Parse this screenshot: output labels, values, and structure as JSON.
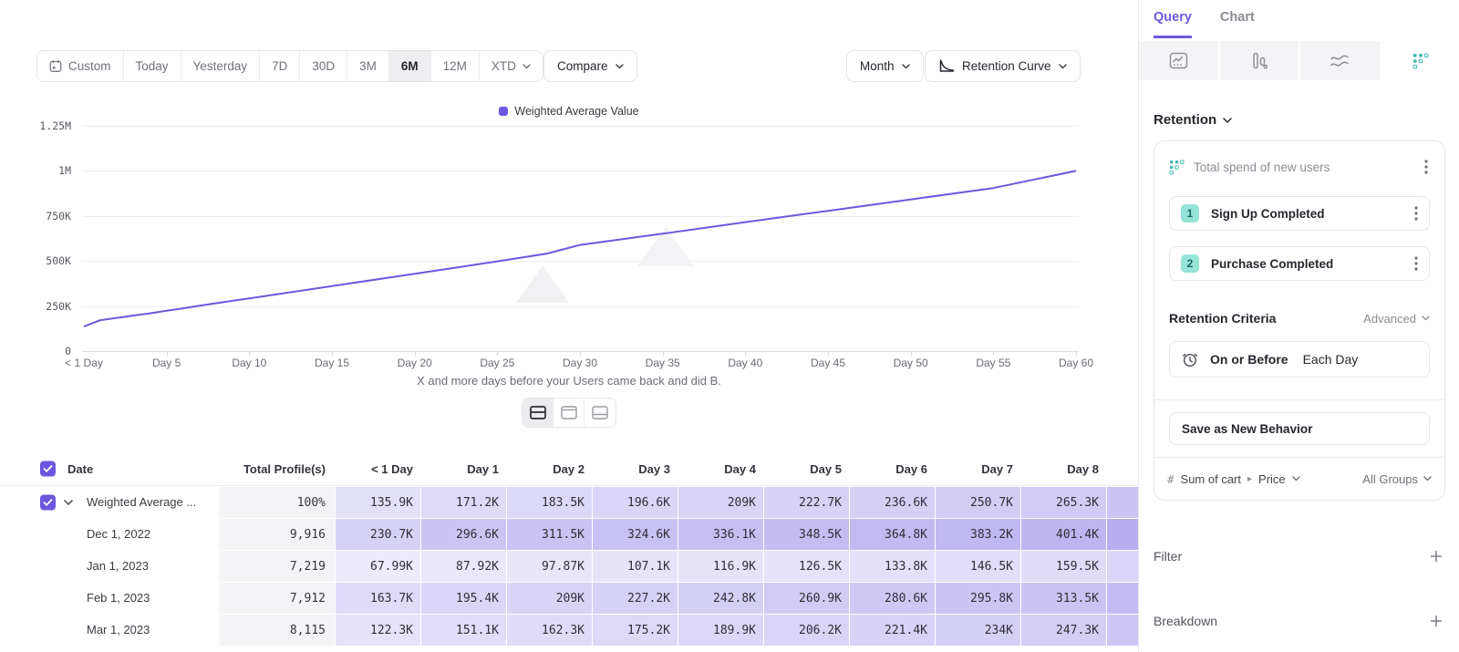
{
  "toolbar": {
    "date_ranges": [
      {
        "label": "Custom",
        "icon": "calendar"
      },
      {
        "label": "Today"
      },
      {
        "label": "Yesterday"
      },
      {
        "label": "7D"
      },
      {
        "label": "30D"
      },
      {
        "label": "3M"
      },
      {
        "label": "6M"
      },
      {
        "label": "12M"
      },
      {
        "label": "XTD",
        "chevron": true
      }
    ],
    "active_range": "6M",
    "compare_label": "Compare",
    "granularity_label": "Month",
    "chart_type_label": "Retention Curve"
  },
  "chart_data": {
    "type": "line",
    "title": "",
    "legend": [
      {
        "label": "Weighted Average Value",
        "color": "#6C58DE"
      }
    ],
    "caption": "X and more days before your Users came back and did B.",
    "xlabel": "X and more days before your Users came back and did B.",
    "ylabel": "",
    "ylim_k": [
      0,
      1250
    ],
    "grid": true,
    "y_ticks": [
      {
        "label": "0",
        "k": 0
      },
      {
        "label": "250K",
        "k": 250
      },
      {
        "label": "500K",
        "k": 500
      },
      {
        "label": "750K",
        "k": 750
      },
      {
        "label": "1M",
        "k": 1000
      },
      {
        "label": "1.25M",
        "k": 1250
      }
    ],
    "x_ticks": [
      {
        "label": "< 1 Day",
        "day": 0
      },
      {
        "label": "Day 5",
        "day": 5
      },
      {
        "label": "Day 10",
        "day": 10
      },
      {
        "label": "Day 15",
        "day": 15
      },
      {
        "label": "Day 20",
        "day": 20
      },
      {
        "label": "Day 25",
        "day": 25
      },
      {
        "label": "Day 30",
        "day": 30
      },
      {
        "label": "Day 35",
        "day": 35
      },
      {
        "label": "Day 40",
        "day": 40
      },
      {
        "label": "Day 45",
        "day": 45
      },
      {
        "label": "Day 50",
        "day": 50
      },
      {
        "label": "Day 55",
        "day": 55
      },
      {
        "label": "Day 60",
        "day": 60
      }
    ],
    "series": [
      {
        "name": "Weighted Average Value",
        "points_day_k": [
          [
            0,
            136
          ],
          [
            1,
            171
          ],
          [
            2,
            184
          ],
          [
            3,
            197
          ],
          [
            4,
            209
          ],
          [
            5,
            223
          ],
          [
            6,
            237
          ],
          [
            7,
            251
          ],
          [
            8,
            265
          ],
          [
            10,
            292
          ],
          [
            15,
            360
          ],
          [
            20,
            428
          ],
          [
            25,
            497
          ],
          [
            28,
            540
          ],
          [
            30,
            588
          ],
          [
            35,
            650
          ],
          [
            40,
            714
          ],
          [
            45,
            777
          ],
          [
            50,
            840
          ],
          [
            55,
            903
          ],
          [
            60,
            998
          ]
        ]
      }
    ]
  },
  "view_toggles": [
    {
      "icon": "split-view",
      "active": true
    },
    {
      "icon": "chart-view",
      "active": false
    },
    {
      "icon": "table-view",
      "active": false
    }
  ],
  "table": {
    "columns": [
      "Date",
      "Total Profile(s)",
      "< 1 Day",
      "Day 1",
      "Day 2",
      "Day 3",
      "Day 4",
      "Day 5",
      "Day 6",
      "Day 7",
      "Day 8"
    ],
    "rows": [
      {
        "label": "Weighted Average ...",
        "total": "100%",
        "checked": true,
        "expanded": true,
        "values": [
          "135.9K",
          "171.2K",
          "183.5K",
          "196.6K",
          "209K",
          "222.7K",
          "236.6K",
          "250.7K",
          "265.3K"
        ]
      },
      {
        "label": "Dec 1, 2022",
        "total": "9,916",
        "values": [
          "230.7K",
          "296.6K",
          "311.5K",
          "324.6K",
          "336.1K",
          "348.5K",
          "364.8K",
          "383.2K",
          "401.4K"
        ]
      },
      {
        "label": "Jan 1, 2023",
        "total": "7,219",
        "values": [
          "67.99K",
          "87.92K",
          "97.87K",
          "107.1K",
          "116.9K",
          "126.5K",
          "133.8K",
          "146.5K",
          "159.5K"
        ]
      },
      {
        "label": "Feb 1, 2023",
        "total": "7,912",
        "values": [
          "163.7K",
          "195.4K",
          "209K",
          "227.2K",
          "242.8K",
          "260.9K",
          "280.6K",
          "295.8K",
          "313.5K"
        ]
      },
      {
        "label": "Mar 1, 2023",
        "total": "8,115",
        "values": [
          "122.3K",
          "151.1K",
          "162.3K",
          "175.2K",
          "189.9K",
          "206.2K",
          "221.4K",
          "234K",
          "247.3K"
        ]
      }
    ]
  },
  "panel": {
    "tabs": [
      {
        "label": "Query",
        "active": true
      },
      {
        "label": "Chart",
        "active": false
      }
    ],
    "report_tabs": [
      {
        "icon": "insights",
        "active": false
      },
      {
        "icon": "funnels",
        "active": false
      },
      {
        "icon": "flows",
        "active": false
      },
      {
        "icon": "retention",
        "active": true
      }
    ],
    "section_title": "Retention",
    "behavior": {
      "title": "Total spend of new users",
      "steps": [
        {
          "num": "1",
          "label": "Sign Up Completed"
        },
        {
          "num": "2",
          "label": "Purchase Completed"
        }
      ]
    },
    "criteria_label": "Retention Criteria",
    "criteria_mode": "Advanced",
    "timing_bold": "On or Before",
    "timing_value": "Each Day",
    "save_button_label": "Save as New Behavior",
    "measurement": {
      "prefix": "#",
      "label": "Sum of cart",
      "property": "Price",
      "scope": "All Groups"
    },
    "filter_label": "Filter",
    "breakdown_label": "Breakdown"
  },
  "colors": {
    "accent": "#6C58DE",
    "teal": "#3FBDB2",
    "cell_purple_rgb": "108,88,222",
    "active_segment_bg": "#eeeef1"
  }
}
